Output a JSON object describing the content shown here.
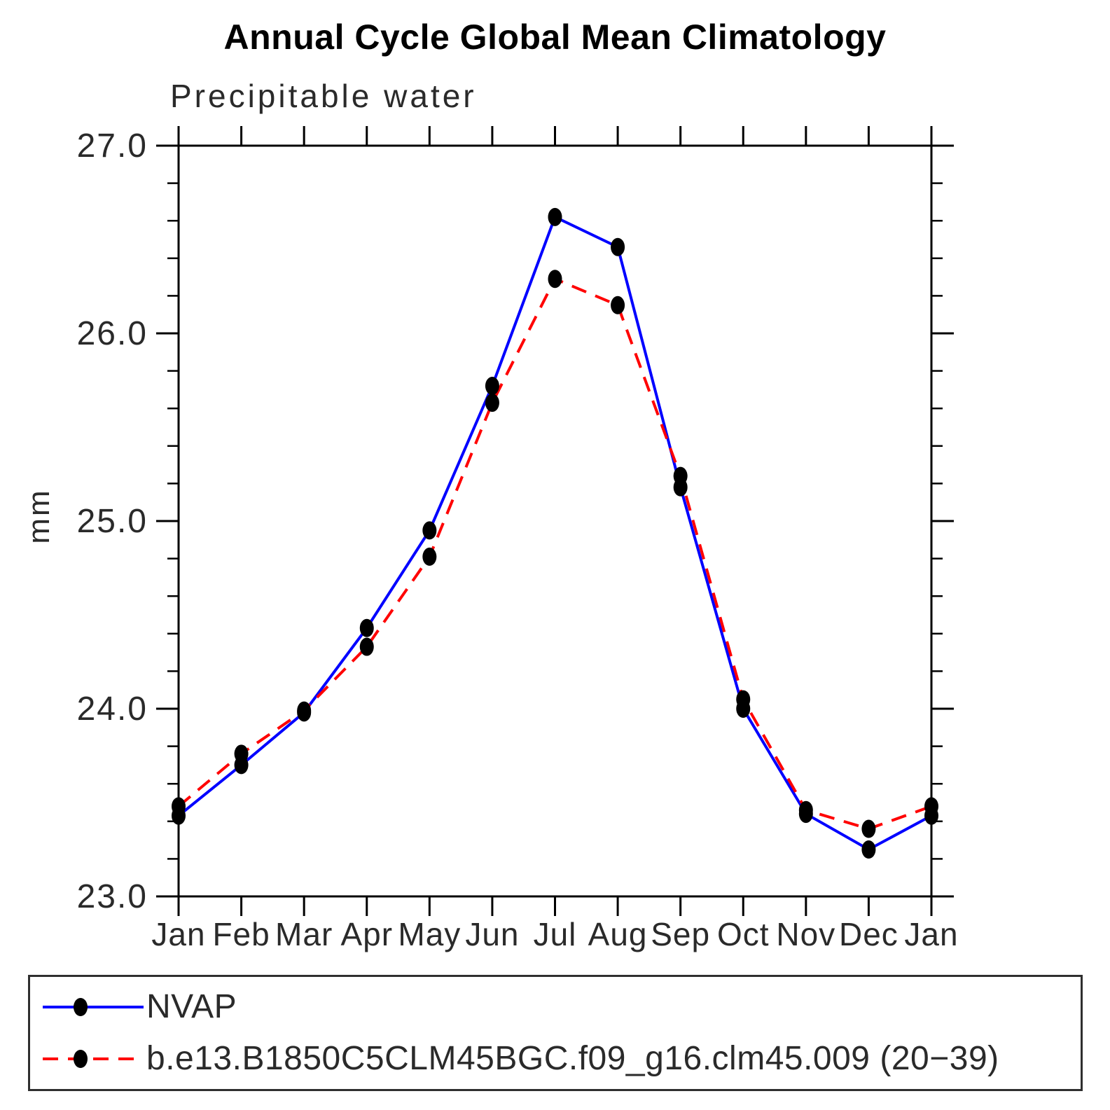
{
  "chart_data": {
    "type": "line",
    "title": "Annual Cycle Global Mean Climatology",
    "subtitle": "Precipitable water",
    "xlabel": "",
    "ylabel": "mm",
    "x_tick_labels": [
      "Jan",
      "Feb",
      "Mar",
      "Apr",
      "May",
      "Jun",
      "Jul",
      "Aug",
      "Sep",
      "Oct",
      "Nov",
      "Dec",
      "Jan"
    ],
    "y_tick_labels": [
      "23.0",
      "24.0",
      "25.0",
      "26.0",
      "27.0"
    ],
    "ylim": [
      23.0,
      27.0
    ],
    "y_minor_tick_step": 0.2,
    "grid": false,
    "legend_position": "bottom-box",
    "marker": "filled-ellipse",
    "marker_color": "#000000",
    "axis_color": "#000000",
    "series": [
      {
        "name": "NVAP",
        "color": "#0000ff",
        "line": "solid",
        "values": [
          23.43,
          23.7,
          23.98,
          24.43,
          24.95,
          25.72,
          26.62,
          26.46,
          25.18,
          24.0,
          23.44,
          23.25,
          23.43
        ]
      },
      {
        "name": "b.e13.B1850C5CLM45BGC.f09_g16.clm45.009 (20−39)",
        "color": "#ff0000",
        "line": "dashed",
        "values": [
          23.48,
          23.76,
          23.99,
          24.33,
          24.81,
          25.63,
          26.29,
          26.15,
          25.24,
          24.05,
          23.46,
          23.36,
          23.48
        ]
      }
    ]
  },
  "legend": {
    "items": [
      {
        "label": "NVAP",
        "color": "#0000ff",
        "line": "solid"
      },
      {
        "label": "b.e13.B1850C5CLM45BGC.f09_g16.clm45.009 (20−39)",
        "color": "#ff0000",
        "line": "dashed"
      }
    ]
  }
}
